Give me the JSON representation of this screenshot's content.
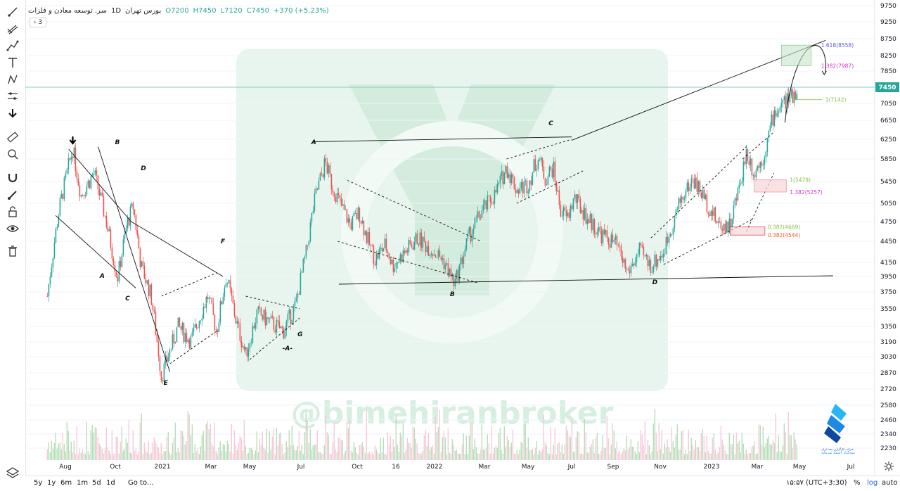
{
  "legend": {
    "title": "سر. توسعه معادن و فلزات",
    "interval": "1D",
    "exchange": "بورس تهران",
    "open": "O7200",
    "high": "H7450",
    "low": "L7120",
    "close": "C7450",
    "change": "+370 (+5.23%)",
    "indicator_count": "3"
  },
  "bottom": {
    "ranges": [
      "5y",
      "1y",
      "6m",
      "1m",
      "5d",
      "1d"
    ],
    "goto": "Go to...",
    "clock": "۱۵:۵۷ (UTC+3:30)",
    "percent": "%",
    "log": "log",
    "auto": "auto"
  },
  "watermark": "@bimehiranbroker",
  "logo_text": [
    "شرکت کارگزاری بیمه ایران",
    "بیمه‌گذار اعتماد سرمایه"
  ],
  "chart_data": {
    "type": "candlestick",
    "y_ticks": [
      9750,
      9250,
      8750,
      8250,
      7850,
      7450,
      7050,
      6650,
      6250,
      5850,
      5450,
      5050,
      4750,
      4450,
      4150,
      3950,
      3750,
      3550,
      3350,
      3190,
      3030,
      2870,
      2720,
      2580,
      2460,
      2340,
      2230
    ],
    "x_ticks": [
      "Aug",
      "Oct",
      "2021",
      "Mar",
      "May",
      "Jul",
      "Oct",
      "16",
      "2022",
      "Mar",
      "May",
      "Jul",
      "Sep",
      "Nov",
      "2023",
      "Mar",
      "May",
      "Jul"
    ],
    "last_price": 7450,
    "price_path": [
      [
        "2020-07-10",
        3700
      ],
      [
        "2020-07-25",
        5000
      ],
      [
        "2020-08-10",
        6050
      ],
      [
        "2020-08-20",
        5200
      ],
      [
        "2020-09-05",
        5600
      ],
      [
        "2020-09-20",
        4750
      ],
      [
        "2020-10-05",
        3920
      ],
      [
        "2020-10-25",
        4750
      ],
      [
        "2020-11-05",
        5000
      ],
      [
        "2020-11-20",
        4100
      ],
      [
        "2020-12-10",
        3700
      ],
      [
        "2020-12-30",
        2830
      ],
      [
        "2021-01-20",
        3350
      ],
      [
        "2021-02-05",
        3200
      ],
      [
        "2021-02-25",
        3700
      ],
      [
        "2021-03-10",
        3300
      ],
      [
        "2021-03-25",
        3950
      ],
      [
        "2021-04-10",
        3400
      ],
      [
        "2021-04-25",
        3050
      ],
      [
        "2021-05-10",
        3500
      ],
      [
        "2021-05-25",
        3400
      ],
      [
        "2021-06-10",
        3300
      ],
      [
        "2021-06-25",
        3600
      ],
      [
        "2021-07-10",
        4300
      ],
      [
        "2021-07-25",
        5200
      ],
      [
        "2021-08-10",
        5800
      ],
      [
        "2021-08-20",
        5400
      ],
      [
        "2021-09-05",
        5000
      ],
      [
        "2021-09-20",
        4700
      ],
      [
        "2021-10-05",
        4900
      ],
      [
        "2021-10-20",
        4500
      ],
      [
        "2021-11-05",
        4200
      ],
      [
        "2021-11-25",
        4400
      ],
      [
        "2021-12-10",
        4100
      ],
      [
        "2021-12-25",
        4500
      ],
      [
        "2022-01-10",
        4200
      ],
      [
        "2022-01-25",
        3850
      ],
      [
        "2022-02-10",
        4500
      ],
      [
        "2022-02-25",
        4900
      ],
      [
        "2022-03-15",
        5200
      ],
      [
        "2022-04-01",
        5700
      ],
      [
        "2022-04-15",
        5300
      ],
      [
        "2022-05-01",
        5400
      ],
      [
        "2022-05-15",
        5900
      ],
      [
        "2022-05-25",
        5500
      ],
      [
        "2022-06-05",
        5700
      ],
      [
        "2022-06-15",
        4950
      ],
      [
        "2022-06-25",
        4800
      ],
      [
        "2022-07-05",
        5150
      ],
      [
        "2022-07-25",
        4800
      ],
      [
        "2022-08-15",
        4550
      ],
      [
        "2022-09-05",
        4400
      ],
      [
        "2022-09-20",
        4000
      ],
      [
        "2022-10-05",
        4300
      ],
      [
        "2022-10-20",
        4100
      ],
      [
        "2022-11-05",
        4300
      ],
      [
        "2022-11-25",
        5100
      ],
      [
        "2022-12-10",
        5500
      ],
      [
        "2022-12-25",
        5100
      ],
      [
        "2023-01-10",
        4700
      ],
      [
        "2023-01-25",
        4700
      ],
      [
        "2023-02-05",
        5300
      ],
      [
        "2023-02-15",
        6000
      ],
      [
        "2023-02-25",
        5600
      ],
      [
        "2023-03-10",
        5900
      ],
      [
        "2023-03-25",
        6800
      ],
      [
        "2023-04-10",
        7100
      ],
      [
        "2023-04-20",
        7200
      ],
      [
        "2023-04-28",
        7450
      ]
    ],
    "wave_labels": [
      "A",
      "B",
      "C",
      "D",
      "E",
      "F",
      "G",
      "-A-",
      "A",
      "B",
      "C",
      "D"
    ],
    "fib_labels": [
      {
        "text": "1.618(8558)",
        "color": "#5b5bd6"
      },
      {
        "text": "1.382(7987)",
        "color": "#c93cc9"
      },
      {
        "text": "1(7142)",
        "color": "#8bc34a"
      },
      {
        "text": "1(5479)",
        "color": "#8bc34a"
      },
      {
        "text": "1.382(5257)",
        "color": "#c93cc9"
      },
      {
        "text": "0.382(4669)",
        "color": "#8bc34a"
      },
      {
        "text": "0.382(4544)",
        "color": "#ff5722"
      }
    ],
    "colors": {
      "up": "#26a69a",
      "down": "#ef5350",
      "price_line": "#26a69a",
      "vol_up": "#a5d6a7",
      "vol_down": "#f8bbd0"
    }
  }
}
